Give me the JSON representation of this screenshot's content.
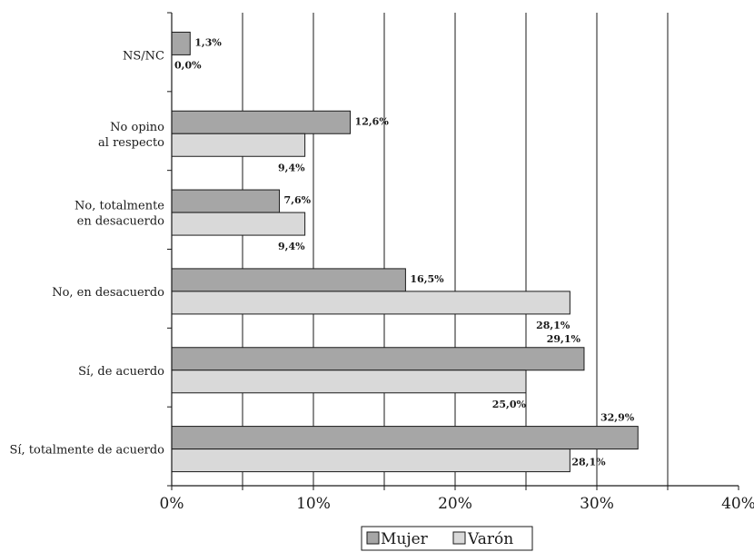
{
  "chart_data": {
    "type": "bar",
    "orientation": "horizontal",
    "categories": [
      [
        "NS/NC"
      ],
      [
        "No opino",
        "al respecto"
      ],
      [
        "No, totalmente",
        "en desacuerdo"
      ],
      [
        "No, en desacuerdo"
      ],
      [
        "Sí, de acuerdo"
      ],
      [
        "Sí, totalmente de acuerdo"
      ]
    ],
    "series": [
      {
        "name": "Mujer",
        "color": "#a6a6a6",
        "values": [
          1.3,
          12.6,
          7.6,
          16.5,
          29.1,
          32.9
        ],
        "labels": [
          "1,3%",
          "12,6%",
          "7,6%",
          "16,5%",
          "29,1%",
          "32,9%"
        ]
      },
      {
        "name": "Varón",
        "color": "#d9d9d9",
        "values": [
          0.0,
          9.4,
          9.4,
          28.1,
          25.0,
          28.1
        ],
        "labels": [
          "0,0%",
          "9,4%",
          "9,4%",
          "28,1%",
          "25,0%",
          "28,1%"
        ]
      }
    ],
    "xlim": [
      0,
      40
    ],
    "xticks": [
      0,
      10,
      20,
      30,
      40
    ],
    "xtick_labels": [
      "0%",
      "10%",
      "20%",
      "30%",
      "40%"
    ],
    "gridlines_at": [
      5,
      10,
      15,
      20,
      25,
      30,
      35
    ],
    "grid": true,
    "legend_position": "bottom-center"
  }
}
